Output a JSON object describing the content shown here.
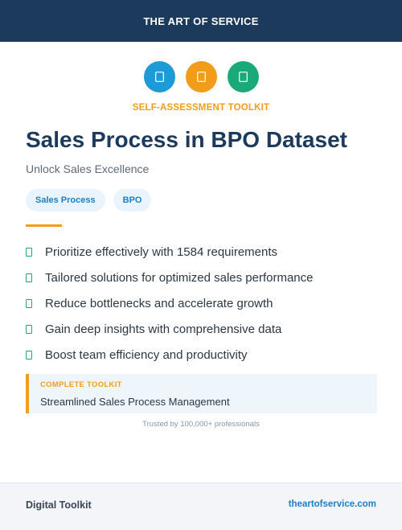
{
  "header": {
    "brand": "THE ART OF SERVICE"
  },
  "icons": [
    {
      "name": "document-icon",
      "color": "#1d9bd7"
    },
    {
      "name": "document-icon",
      "color": "#f29d1a"
    },
    {
      "name": "document-icon",
      "color": "#1aa978"
    }
  ],
  "eyebrow": "SELF-ASSESSMENT TOOLKIT",
  "title": "Sales Process in BPO Dataset",
  "subtitle": "Unlock Sales Excellence",
  "tags": [
    "Sales Process",
    "BPO"
  ],
  "features": [
    "Prioritize effectively with 1584 requirements",
    "Tailored solutions for optimized sales performance",
    "Reduce bottlenecks and accelerate growth",
    "Gain deep insights with comprehensive data",
    "Boost team efficiency and productivity"
  ],
  "callout": {
    "label": "COMPLETE TOOLKIT",
    "text": "Streamlined Sales Process Management"
  },
  "trust": "Trusted by 100,000+ professionals",
  "footer": {
    "left": "Digital Toolkit",
    "right": "theartofservice.com"
  },
  "colors": {
    "navy": "#1b3a5c",
    "accent_orange": "#f29d1a",
    "accent_blue": "#1d9bd7",
    "accent_green": "#1aa978"
  }
}
